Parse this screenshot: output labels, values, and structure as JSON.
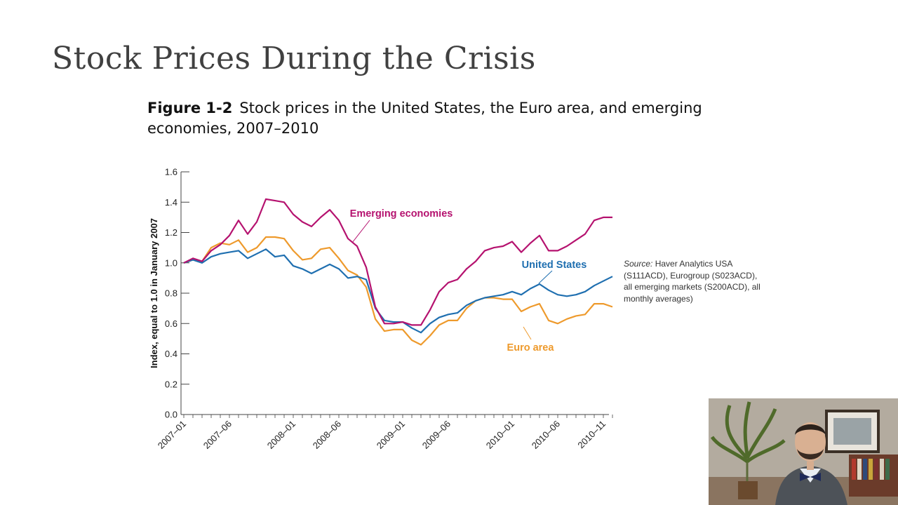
{
  "slide": {
    "title": "Stock Prices During the Crisis"
  },
  "figure": {
    "label": "Figure 1-2",
    "caption": "Stock prices in the United States, the Euro area, and emerging economies, 2007–2010"
  },
  "source": {
    "label": "Source:",
    "text": "Haver Analytics USA (S111ACD), Eurogroup (S023ACD), all emerging markets (S200ACD), all monthly averages)"
  },
  "colors": {
    "emerging": "#b5126f",
    "us": "#1f6fb0",
    "euro": "#ee9a2c",
    "axis": "#444444"
  },
  "chart_data": {
    "type": "line",
    "ylabel": "Index, equal to 1.0 in January 2007",
    "xlabel": "",
    "ylim": [
      0.0,
      1.6
    ],
    "yticks": [
      "0.0",
      "0.2",
      "0.4",
      "0.6",
      "0.8",
      "1.0",
      "1.2",
      "1.4",
      "1.6"
    ],
    "x_tick_labels": [
      {
        "month": 0,
        "label": "2007–01"
      },
      {
        "month": 5,
        "label": "2007–06"
      },
      {
        "month": 12,
        "label": "2008–01"
      },
      {
        "month": 17,
        "label": "2008–06"
      },
      {
        "month": 24,
        "label": "2009–01"
      },
      {
        "month": 29,
        "label": "2009–06"
      },
      {
        "month": 36,
        "label": "2010–01"
      },
      {
        "month": 41,
        "label": "2010–06"
      },
      {
        "month": 46,
        "label": "2010–11"
      }
    ],
    "series": [
      {
        "name": "Emerging economies",
        "color": "#b5126f",
        "values": [
          1.0,
          1.03,
          1.01,
          1.08,
          1.12,
          1.18,
          1.28,
          1.19,
          1.27,
          1.42,
          1.41,
          1.4,
          1.32,
          1.27,
          1.24,
          1.3,
          1.35,
          1.28,
          1.16,
          1.11,
          0.97,
          0.71,
          0.6,
          0.6,
          0.61,
          0.59,
          0.59,
          0.69,
          0.81,
          0.87,
          0.89,
          0.96,
          1.01,
          1.08,
          1.1,
          1.11,
          1.14,
          1.07,
          1.13,
          1.18,
          1.08,
          1.08,
          1.11,
          1.15,
          1.19,
          1.28,
          1.3,
          1.3
        ]
      },
      {
        "name": "United States",
        "color": "#1f6fb0",
        "values": [
          1.0,
          1.02,
          1.0,
          1.04,
          1.06,
          1.07,
          1.08,
          1.03,
          1.06,
          1.09,
          1.04,
          1.05,
          0.98,
          0.96,
          0.93,
          0.96,
          0.99,
          0.96,
          0.9,
          0.91,
          0.89,
          0.7,
          0.62,
          0.61,
          0.61,
          0.57,
          0.54,
          0.6,
          0.64,
          0.66,
          0.67,
          0.72,
          0.75,
          0.77,
          0.78,
          0.79,
          0.81,
          0.79,
          0.83,
          0.86,
          0.82,
          0.79,
          0.78,
          0.79,
          0.81,
          0.85,
          0.88,
          0.91
        ]
      },
      {
        "name": "Euro area",
        "color": "#ee9a2c",
        "values": [
          1.0,
          1.02,
          1.01,
          1.1,
          1.13,
          1.12,
          1.15,
          1.07,
          1.1,
          1.17,
          1.17,
          1.16,
          1.08,
          1.02,
          1.03,
          1.09,
          1.1,
          1.03,
          0.95,
          0.92,
          0.84,
          0.63,
          0.55,
          0.56,
          0.56,
          0.49,
          0.46,
          0.52,
          0.59,
          0.62,
          0.62,
          0.7,
          0.75,
          0.77,
          0.77,
          0.76,
          0.76,
          0.68,
          0.71,
          0.73,
          0.62,
          0.6,
          0.63,
          0.65,
          0.66,
          0.73,
          0.73,
          0.71
        ]
      }
    ]
  }
}
